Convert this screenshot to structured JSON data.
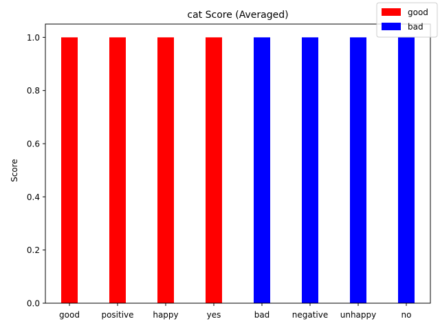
{
  "chart_data": {
    "type": "bar",
    "title": "cat Score (Averaged)",
    "xlabel": "",
    "ylabel": "Score",
    "categories": [
      "good",
      "positive",
      "happy",
      "yes",
      "bad",
      "negative",
      "unhappy",
      "no"
    ],
    "values": [
      1.0,
      1.0,
      1.0,
      1.0,
      1.0,
      1.0,
      1.0,
      1.0
    ],
    "bar_groups": [
      "good",
      "good",
      "good",
      "good",
      "bad",
      "bad",
      "bad",
      "bad"
    ],
    "ylim": [
      0,
      1.05
    ],
    "yticks": [
      "0.0",
      "0.2",
      "0.4",
      "0.6",
      "0.8",
      "1.0"
    ],
    "grid": false,
    "legend": {
      "placement": "top-right",
      "entries": [
        {
          "name": "good",
          "color": "#ff0000"
        },
        {
          "name": "bad",
          "color": "#0000ff"
        }
      ]
    }
  }
}
